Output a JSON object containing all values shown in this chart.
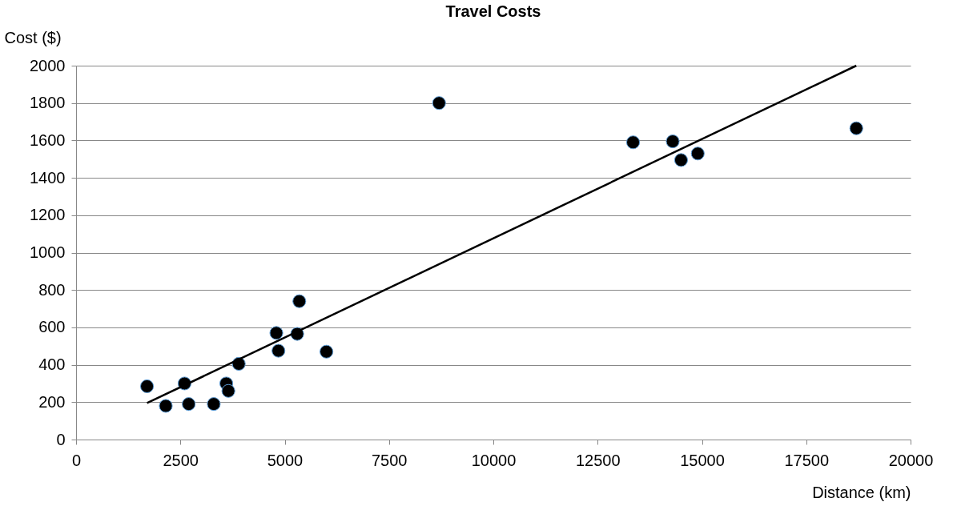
{
  "chart_data": {
    "type": "scatter",
    "title": "Travel Costs",
    "xlabel": "Distance (km)",
    "ylabel": "Cost ($)",
    "xlim": [
      0,
      20000
    ],
    "xticks": [
      0,
      2500,
      5000,
      7500,
      10000,
      12500,
      15000,
      17500,
      20000
    ],
    "ylim": [
      0,
      2000
    ],
    "yticks": [
      0,
      200,
      400,
      600,
      800,
      1000,
      1200,
      1400,
      1600,
      1800,
      2000
    ],
    "grid": "y",
    "series": [
      {
        "color": "#000000",
        "marker": "circle",
        "x": [
          1700,
          2150,
          2600,
          2700,
          3300,
          3600,
          3650,
          3900,
          4800,
          4850,
          5300,
          5350,
          6000,
          8700,
          13350,
          14300,
          14500,
          14900,
          18700
        ],
        "values": [
          285,
          180,
          300,
          190,
          190,
          300,
          260,
          405,
          570,
          475,
          565,
          740,
          470,
          1800,
          1590,
          1595,
          1495,
          1530,
          1665
        ]
      },
      {
        "type": "line",
        "color": "#000000",
        "marker": "none",
        "line_style": "solid",
        "x": [
          1700,
          18700
        ],
        "values": [
          195,
          2000
        ]
      }
    ]
  }
}
